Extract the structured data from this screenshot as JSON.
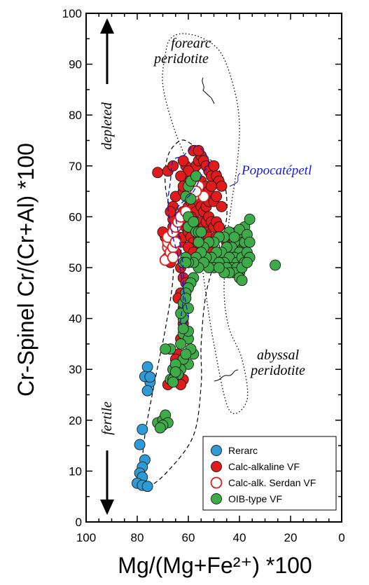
{
  "chart_data": {
    "type": "scatter",
    "xlabel": "Mg/(Mg+Fe²⁺) *100",
    "ylabel": "Cr-Spinel Cr/(Cr+Al) *100",
    "xlim": [
      100,
      0
    ],
    "ylim": [
      0,
      100
    ],
    "x_reversed": true,
    "x_ticks": [
      "100",
      "80",
      "60",
      "40",
      "20",
      "0"
    ],
    "y_ticks": [
      "0",
      "10",
      "20",
      "30",
      "40",
      "50",
      "60",
      "70",
      "80",
      "90",
      "100"
    ],
    "legend_position": "bottom-right",
    "annotations": {
      "forearc": [
        "forearc",
        "peridotite"
      ],
      "popo": "Popocatépetl",
      "abyssal": [
        "abyssal",
        "peridotite"
      ],
      "depleted": "depleted",
      "fertile": "fertile"
    },
    "fields": {
      "forearc_peridotite": [
        [
          44,
          22
        ],
        [
          50,
          35
        ],
        [
          54,
          48
        ],
        [
          56,
          56
        ],
        [
          57,
          64
        ],
        [
          60,
          70
        ],
        [
          66,
          78
        ],
        [
          70,
          86
        ],
        [
          69,
          92
        ],
        [
          67,
          95
        ],
        [
          62,
          96
        ],
        [
          54,
          95
        ],
        [
          47,
          92
        ],
        [
          42,
          85
        ],
        [
          40,
          78
        ],
        [
          41,
          70
        ],
        [
          43,
          63
        ],
        [
          45,
          55
        ],
        [
          46,
          45
        ],
        [
          44,
          38
        ],
        [
          39,
          32
        ],
        [
          37,
          24
        ]
      ],
      "abyssal_peridotite": [
        [
          76,
          7
        ],
        [
          68,
          10
        ],
        [
          58,
          17
        ],
        [
          55,
          27
        ],
        [
          55,
          35
        ],
        [
          53,
          45
        ],
        [
          48,
          54
        ],
        [
          45,
          60
        ],
        [
          46,
          67
        ],
        [
          51,
          71
        ],
        [
          58,
          74
        ],
        [
          63,
          75
        ],
        [
          68,
          72
        ],
        [
          69,
          66
        ],
        [
          66,
          58
        ],
        [
          66,
          48
        ],
        [
          69,
          38
        ],
        [
          73,
          28
        ],
        [
          77,
          17
        ],
        [
          78,
          10
        ]
      ],
      "popocatepetl": [
        [
          63,
          39
        ],
        [
          62,
          44
        ],
        [
          62,
          50
        ],
        [
          64,
          57
        ],
        [
          65,
          61
        ],
        [
          62,
          63
        ],
        [
          58,
          65
        ],
        [
          55,
          68
        ],
        [
          52,
          71
        ],
        [
          57,
          74
        ],
        [
          62,
          72
        ],
        [
          66,
          71
        ],
        [
          67,
          67
        ],
        [
          68,
          62
        ],
        [
          66,
          56
        ],
        [
          64,
          52
        ],
        [
          61,
          43
        ],
        [
          60,
          40
        ]
      ]
    },
    "series": [
      {
        "name": "Rerarc",
        "color": "#2e9ad6",
        "fill": "filled",
        "points": [
          [
            75,
            27.5
          ],
          [
            76,
            30.5
          ],
          [
            77,
            28.6
          ],
          [
            75,
            28.5
          ],
          [
            76,
            25.8
          ],
          [
            78,
            18.2
          ],
          [
            79,
            15.2
          ],
          [
            77,
            12.2
          ],
          [
            78,
            10.8
          ],
          [
            79,
            9.6
          ],
          [
            78,
            8.8
          ],
          [
            80,
            7.6
          ],
          [
            78,
            7.2
          ],
          [
            76,
            7.0
          ]
        ]
      },
      {
        "name": "Calc-alkaline VF",
        "color": "#e11b1b",
        "fill": "filled",
        "points": [
          [
            67,
            54
          ],
          [
            66,
            58
          ],
          [
            66,
            62
          ],
          [
            65,
            64
          ],
          [
            66,
            57
          ],
          [
            64,
            56
          ],
          [
            63,
            55
          ],
          [
            62,
            56
          ],
          [
            61,
            58
          ],
          [
            60,
            57
          ],
          [
            59,
            56
          ],
          [
            58,
            55
          ],
          [
            57,
            54
          ],
          [
            56,
            56
          ],
          [
            55,
            55
          ],
          [
            54,
            56
          ],
          [
            53,
            57
          ],
          [
            52,
            56
          ],
          [
            51,
            54
          ],
          [
            50,
            55
          ],
          [
            49,
            56
          ],
          [
            60,
            62
          ],
          [
            59,
            63
          ],
          [
            58,
            62
          ],
          [
            57,
            61
          ],
          [
            56,
            63
          ],
          [
            55,
            62
          ],
          [
            54,
            61
          ],
          [
            53,
            62
          ],
          [
            52,
            63
          ],
          [
            51,
            64
          ],
          [
            50,
            63
          ],
          [
            62,
            65
          ],
          [
            61,
            66
          ],
          [
            60,
            67
          ],
          [
            59,
            68
          ],
          [
            58,
            69
          ],
          [
            57,
            70
          ],
          [
            56,
            71
          ],
          [
            55,
            72
          ],
          [
            54,
            71
          ],
          [
            53,
            70
          ],
          [
            52,
            69
          ],
          [
            51,
            68
          ],
          [
            50,
            70
          ],
          [
            49,
            68
          ],
          [
            48,
            67
          ],
          [
            47,
            66
          ],
          [
            58,
            73
          ],
          [
            56,
            73
          ],
          [
            61,
            70
          ],
          [
            62,
            71
          ],
          [
            60,
            69
          ],
          [
            62,
            61
          ],
          [
            64,
            60
          ],
          [
            65,
            59
          ],
          [
            63,
            59
          ],
          [
            62,
            59
          ],
          [
            61,
            60
          ],
          [
            60,
            59
          ],
          [
            59,
            60
          ],
          [
            58,
            58
          ],
          [
            57,
            59
          ],
          [
            56,
            58
          ],
          [
            55,
            59
          ],
          [
            54,
            58
          ],
          [
            53,
            59
          ],
          [
            52,
            60
          ],
          [
            51,
            59
          ],
          [
            50,
            58
          ],
          [
            49,
            59
          ],
          [
            48,
            58
          ],
          [
            46,
            56
          ],
          [
            45,
            55
          ],
          [
            68,
            55
          ],
          [
            69,
            56
          ],
          [
            70,
            57
          ],
          [
            65,
            53
          ],
          [
            63,
            50
          ],
          [
            62,
            48
          ],
          [
            61,
            47
          ],
          [
            63,
            45
          ],
          [
            64,
            44
          ],
          [
            62,
            42
          ],
          [
            62,
            39
          ],
          [
            63,
            36
          ],
          [
            64,
            33
          ],
          [
            65,
            32
          ],
          [
            64,
            30
          ],
          [
            62,
            28
          ],
          [
            63,
            27
          ],
          [
            66,
            30
          ],
          [
            68,
            27
          ],
          [
            72,
            68.7
          ],
          [
            68,
            69
          ],
          [
            66,
            70
          ],
          [
            63,
            68
          ],
          [
            62,
            66
          ],
          [
            59,
            65
          ],
          [
            57,
            66
          ],
          [
            55,
            67
          ],
          [
            53,
            66
          ],
          [
            52,
            65
          ],
          [
            51,
            66
          ],
          [
            49,
            64
          ],
          [
            47,
            62
          ],
          [
            66,
            59.5
          ],
          [
            67,
            61
          ],
          [
            65,
            55.5
          ],
          [
            60,
            54
          ],
          [
            59,
            52
          ],
          [
            58,
            53
          ],
          [
            57,
            52
          ],
          [
            56,
            51
          ],
          [
            55,
            53
          ],
          [
            54,
            52
          ],
          [
            53,
            51
          ],
          [
            52,
            52
          ],
          [
            51,
            53
          ],
          [
            50,
            52
          ],
          [
            67,
            51
          ]
        ]
      },
      {
        "name": "Calc-alk. Serdan VF",
        "color": "#e11b1b",
        "fill": "open",
        "points": [
          [
            68,
            54
          ],
          [
            68,
            52
          ],
          [
            68,
            55
          ],
          [
            69,
            51.5
          ],
          [
            68,
            56
          ],
          [
            67,
            53
          ],
          [
            66,
            54
          ],
          [
            66,
            52
          ],
          [
            65,
            55
          ],
          [
            66,
            57
          ],
          [
            65,
            58
          ],
          [
            64,
            59
          ],
          [
            63,
            60
          ],
          [
            61,
            61
          ],
          [
            58,
            64
          ],
          [
            60,
            64
          ],
          [
            59,
            65
          ],
          [
            58,
            67
          ],
          [
            54,
            64
          ],
          [
            56,
            66
          ],
          [
            57,
            65
          ]
        ]
      },
      {
        "name": "OIB-type VF",
        "color": "#3dab48",
        "fill": "filled",
        "points": [
          [
            38,
            58
          ],
          [
            41,
            57
          ],
          [
            44,
            57
          ],
          [
            46,
            56
          ],
          [
            48,
            56
          ],
          [
            50,
            55
          ],
          [
            52,
            55
          ],
          [
            54,
            54
          ],
          [
            56,
            55
          ],
          [
            39,
            56
          ],
          [
            40,
            55
          ],
          [
            42,
            55
          ],
          [
            43,
            54
          ],
          [
            45,
            54
          ],
          [
            47,
            53
          ],
          [
            49,
            53
          ],
          [
            51,
            52
          ],
          [
            53,
            52
          ],
          [
            55,
            53
          ],
          [
            57,
            52
          ],
          [
            38,
            54
          ],
          [
            40,
            53
          ],
          [
            42,
            52
          ],
          [
            44,
            52
          ],
          [
            46,
            51
          ],
          [
            48,
            51
          ],
          [
            50,
            50
          ],
          [
            52,
            50
          ],
          [
            54,
            51
          ],
          [
            56,
            50
          ],
          [
            41,
            51
          ],
          [
            43,
            50
          ],
          [
            45,
            50
          ],
          [
            39,
            52
          ],
          [
            38,
            55
          ],
          [
            41,
            50
          ],
          [
            58,
            51
          ],
          [
            60,
            51
          ],
          [
            61,
            52
          ],
          [
            62,
            51
          ],
          [
            40,
            49
          ],
          [
            42,
            49
          ],
          [
            44,
            49
          ],
          [
            46,
            49
          ],
          [
            48,
            50
          ],
          [
            36,
            59.5
          ],
          [
            40,
            57.5
          ],
          [
            42,
            56
          ],
          [
            37,
            56.5
          ],
          [
            36,
            55
          ],
          [
            37,
            53
          ],
          [
            36,
            52
          ],
          [
            38,
            51
          ],
          [
            39,
            50
          ],
          [
            40,
            48
          ],
          [
            37,
            51
          ],
          [
            26,
            50.5
          ],
          [
            39,
            47.5
          ],
          [
            60,
            58
          ],
          [
            61,
            51
          ],
          [
            58,
            48
          ],
          [
            59,
            47
          ],
          [
            60,
            46
          ],
          [
            61,
            45
          ],
          [
            62,
            43
          ],
          [
            61,
            44
          ],
          [
            62,
            40
          ],
          [
            63,
            41
          ],
          [
            60,
            42
          ],
          [
            62,
            37
          ],
          [
            60,
            36
          ],
          [
            58,
            33
          ],
          [
            60,
            31
          ],
          [
            59,
            34
          ],
          [
            62,
            32
          ],
          [
            61,
            33
          ],
          [
            63,
            30
          ],
          [
            64,
            29
          ],
          [
            66,
            30
          ],
          [
            65,
            31
          ],
          [
            67,
            28
          ],
          [
            66,
            28
          ],
          [
            67,
            34
          ],
          [
            69,
            34
          ],
          [
            65,
            29.5
          ],
          [
            66,
            27.5
          ],
          [
            60,
            37.5
          ],
          [
            63,
            35
          ],
          [
            62,
            38
          ],
          [
            72,
            19.5
          ],
          [
            70,
            20
          ],
          [
            69,
            21
          ],
          [
            68,
            19.5
          ],
          [
            70,
            19
          ],
          [
            71,
            18.5
          ],
          [
            60,
            66
          ],
          [
            59,
            67
          ],
          [
            57,
            68
          ],
          [
            61,
            64
          ],
          [
            60,
            60
          ],
          [
            59,
            63.5
          ],
          [
            58,
            59
          ],
          [
            57,
            57
          ],
          [
            56,
            57
          ],
          [
            55,
            57
          ]
        ]
      }
    ]
  }
}
